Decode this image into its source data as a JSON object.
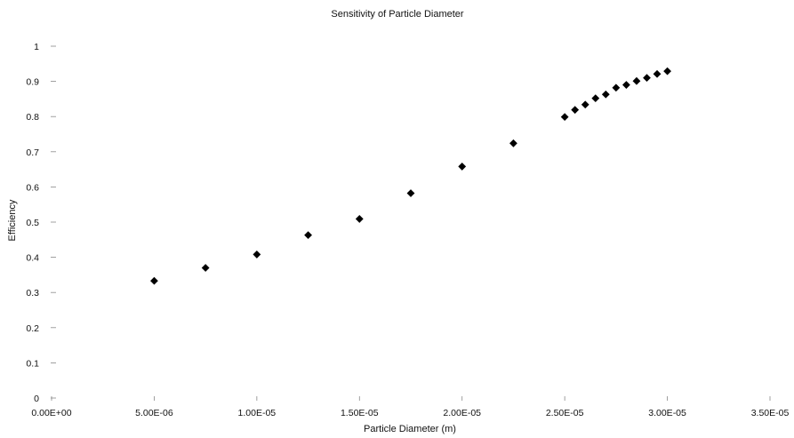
{
  "chart_data": {
    "type": "scatter",
    "title": "Sensitivity of Particle Diameter",
    "xlabel": "Particle Diameter (m)",
    "ylabel": "Efficiency",
    "xlim": [
      0,
      3.5e-05
    ],
    "ylim": [
      0,
      1
    ],
    "x_ticks": [
      {
        "value": 0,
        "label": "0.00E+00"
      },
      {
        "value": 5e-06,
        "label": "5.00E-06"
      },
      {
        "value": 1e-05,
        "label": "1.00E-05"
      },
      {
        "value": 1.5e-05,
        "label": "1.50E-05"
      },
      {
        "value": 2e-05,
        "label": "2.00E-05"
      },
      {
        "value": 2.5e-05,
        "label": "2.50E-05"
      },
      {
        "value": 3e-05,
        "label": "3.00E-05"
      },
      {
        "value": 3.5e-05,
        "label": "3.50E-05"
      }
    ],
    "y_ticks": [
      {
        "value": 0,
        "label": "0"
      },
      {
        "value": 0.1,
        "label": "0.1"
      },
      {
        "value": 0.2,
        "label": "0.2"
      },
      {
        "value": 0.3,
        "label": "0.3"
      },
      {
        "value": 0.4,
        "label": "0.4"
      },
      {
        "value": 0.5,
        "label": "0.5"
      },
      {
        "value": 0.6,
        "label": "0.6"
      },
      {
        "value": 0.7,
        "label": "0.7"
      },
      {
        "value": 0.8,
        "label": "0.8"
      },
      {
        "value": 0.9,
        "label": "0.9"
      },
      {
        "value": 1,
        "label": "1"
      }
    ],
    "grid": false,
    "marker": "diamond",
    "marker_color": "#000000",
    "series": [
      {
        "points": [
          {
            "x": 5e-06,
            "y": 0.333
          },
          {
            "x": 7.5e-06,
            "y": 0.37
          },
          {
            "x": 1e-05,
            "y": 0.408
          },
          {
            "x": 1.25e-05,
            "y": 0.463
          },
          {
            "x": 1.5e-05,
            "y": 0.509
          },
          {
            "x": 1.75e-05,
            "y": 0.582
          },
          {
            "x": 2e-05,
            "y": 0.658
          },
          {
            "x": 2.25e-05,
            "y": 0.724
          },
          {
            "x": 2.5e-05,
            "y": 0.799
          },
          {
            "x": 2.55e-05,
            "y": 0.819
          },
          {
            "x": 2.6e-05,
            "y": 0.834
          },
          {
            "x": 2.65e-05,
            "y": 0.852
          },
          {
            "x": 2.7e-05,
            "y": 0.863
          },
          {
            "x": 2.75e-05,
            "y": 0.882
          },
          {
            "x": 2.8e-05,
            "y": 0.89
          },
          {
            "x": 2.85e-05,
            "y": 0.901
          },
          {
            "x": 2.9e-05,
            "y": 0.91
          },
          {
            "x": 2.95e-05,
            "y": 0.921
          },
          {
            "x": 3e-05,
            "y": 0.929
          }
        ]
      }
    ]
  }
}
